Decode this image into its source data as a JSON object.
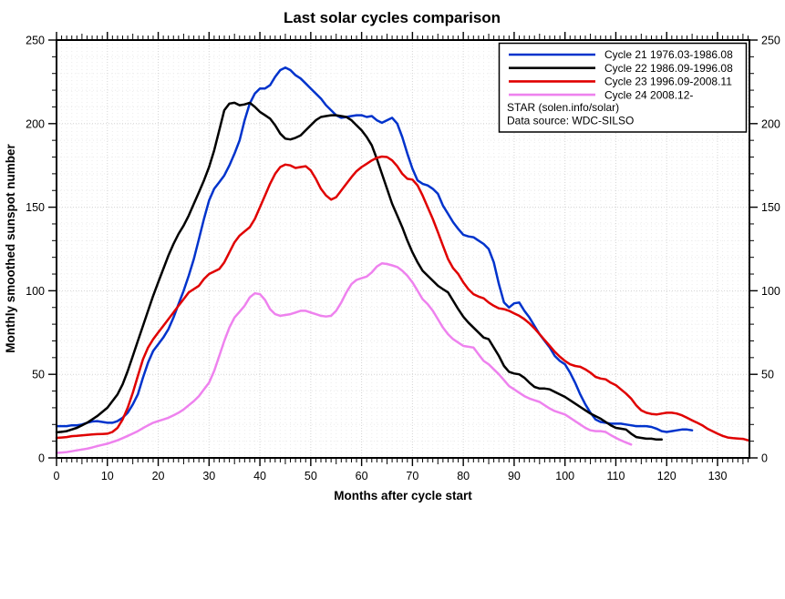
{
  "page": {
    "title": "Last solar cycles comparison"
  },
  "chart_data": {
    "type": "line",
    "title": "Last solar cycles comparison",
    "xlabel": "Months after cycle start",
    "ylabel": "Monthly smoothed sunspot number",
    "xlim": [
      0,
      136.3
    ],
    "ylim": [
      0,
      250
    ],
    "x_ticks": [
      0,
      10,
      20,
      30,
      40,
      50,
      60,
      70,
      80,
      90,
      100,
      110,
      120,
      130
    ],
    "x_minor_step": 1,
    "y_ticks": [
      0,
      50,
      100,
      150,
      200,
      250
    ],
    "y_minor_step": 10,
    "grid": "dotted major and minor gridlines, mirrored tick axes on all four sides",
    "legend_position": "top-right",
    "x_unit": "months after cycle start",
    "annotations": [
      "STAR (solen.info/solar)",
      "Data source: WDC-SILSO"
    ],
    "series": [
      {
        "name": "cycle21",
        "label": "Cycle 21 1976.03-1986.08",
        "color": "#0033cc",
        "values": [
          19,
          19,
          19,
          19.5,
          19.5,
          20,
          21,
          21.8,
          22,
          21.5,
          21,
          21,
          22,
          24,
          27,
          32,
          38,
          48,
          57,
          64,
          68,
          72,
          77,
          84,
          92,
          100,
          109,
          119,
          131,
          143,
          154,
          161,
          165,
          169,
          175,
          182,
          190,
          202,
          212,
          218,
          221,
          221,
          223,
          228,
          232,
          233.5,
          232,
          229,
          227,
          224,
          221,
          218,
          215,
          211,
          208,
          205,
          203.5,
          204,
          204.5,
          205,
          205,
          204,
          204.5,
          202,
          200.5,
          202,
          203.5,
          200,
          192,
          182,
          173,
          166,
          164,
          163,
          161,
          158,
          151,
          146,
          141,
          137,
          133.5,
          132.5,
          132,
          130,
          128,
          125,
          117,
          104,
          93,
          90,
          92.5,
          93,
          88,
          84,
          79,
          74,
          70,
          66,
          61,
          58,
          56,
          51,
          45,
          38,
          32,
          27,
          23,
          21.5,
          21,
          20.5,
          20.5,
          20.5,
          20,
          19.5,
          19,
          19,
          19,
          18.5,
          17.5,
          16,
          15.5,
          16,
          16.5,
          17,
          17,
          16.5
        ]
      },
      {
        "name": "cycle22",
        "label": "Cycle 22 1986.09-1996.08",
        "color": "#000000",
        "values": [
          15.3,
          15.6,
          16,
          17,
          18,
          19.5,
          21,
          23,
          25,
          27.5,
          30,
          34,
          38,
          44,
          52,
          61,
          70,
          79,
          88,
          97,
          105,
          113,
          121,
          128,
          134,
          139,
          145,
          152,
          159,
          166,
          174,
          184,
          196,
          208,
          212,
          212.5,
          211,
          211.5,
          212.5,
          210,
          207,
          205,
          203,
          199,
          194,
          191,
          190.5,
          191.5,
          193,
          196,
          199,
          202,
          204,
          204.5,
          205,
          205,
          204.5,
          204,
          202,
          199,
          196,
          192,
          187,
          179,
          170,
          161,
          152,
          145,
          138,
          130,
          123,
          117,
          112,
          109,
          106,
          103,
          101,
          99,
          94,
          89,
          84.5,
          81,
          78,
          75,
          72,
          71,
          66,
          61,
          55,
          51.5,
          50.5,
          50,
          48,
          45,
          42.5,
          41.5,
          41.5,
          41,
          39.5,
          38,
          36.5,
          34.5,
          32.5,
          30.5,
          28.5,
          26.5,
          25,
          23.5,
          21.5,
          19.5,
          18,
          17.5,
          17,
          14.5,
          12.5,
          12,
          11.5,
          11.5,
          11,
          11
        ]
      },
      {
        "name": "cycle23",
        "label": "Cycle 23 1996.09-2008.11",
        "color": "#e00000",
        "values": [
          12,
          12.2,
          12.5,
          13,
          13.2,
          13.5,
          13.8,
          14,
          14.2,
          14.3,
          14.5,
          15.5,
          18,
          23,
          30,
          39,
          49,
          59,
          66,
          71,
          75,
          79,
          83,
          87,
          91,
          95,
          99,
          101,
          103,
          107,
          110,
          111.5,
          113,
          117,
          123,
          129,
          133,
          135.5,
          138,
          143,
          150,
          157,
          164,
          170,
          174,
          175.5,
          175,
          173.5,
          174,
          174.5,
          172,
          167,
          161,
          157,
          154.5,
          156,
          160,
          164,
          168,
          171.5,
          174,
          176,
          178,
          179.5,
          180.3,
          180,
          178,
          174.5,
          170,
          167,
          166.5,
          163,
          157,
          150,
          143,
          135,
          127,
          119,
          113.5,
          110,
          105,
          101,
          98,
          96.5,
          95.5,
          93,
          91,
          89.5,
          89,
          88,
          86.5,
          85,
          83,
          80.5,
          77.5,
          74,
          70.5,
          67,
          63.5,
          60.5,
          58,
          56,
          55,
          54.5,
          53,
          51,
          48.5,
          47.5,
          47,
          45,
          43.5,
          41,
          38.5,
          35.5,
          31.5,
          28.5,
          27,
          26.3,
          26,
          26.5,
          27,
          27,
          26.5,
          25.5,
          24,
          22.5,
          21,
          19.5,
          17.5,
          16,
          14.5,
          13.2,
          12.2,
          11.8,
          11.6,
          11.4,
          10.5
        ]
      },
      {
        "name": "cycle24",
        "label": "Cycle 24 2008.12-",
        "color": "#ee82ee",
        "values": [
          3,
          3.2,
          3.5,
          4,
          4.5,
          5,
          5.5,
          6.2,
          7,
          7.8,
          8.5,
          9.5,
          10.5,
          11.8,
          13.2,
          14.6,
          16,
          17.8,
          19.5,
          21,
          22,
          23,
          24,
          25.5,
          27,
          29,
          31.5,
          34,
          37,
          41,
          45,
          52,
          61,
          70,
          78,
          84,
          87.5,
          91,
          96,
          98.5,
          98,
          94.5,
          89,
          86,
          85,
          85.5,
          86,
          87,
          88,
          88,
          87,
          86,
          85,
          84.6,
          85,
          88,
          93,
          99,
          104,
          106.5,
          107.5,
          108.5,
          111,
          114.5,
          116.4,
          116,
          115.2,
          114.2,
          112,
          109,
          105,
          100,
          95,
          92,
          88,
          83,
          78,
          74,
          71,
          69,
          67,
          66.5,
          66,
          62,
          58,
          56,
          53,
          50,
          46.5,
          43,
          41,
          39,
          37,
          35.5,
          34.5,
          33.5,
          31.5,
          29.5,
          28,
          27,
          26,
          24,
          22,
          20,
          18,
          16.5,
          16,
          16,
          15.5,
          13.6,
          12,
          10.5,
          9.2,
          8
        ]
      }
    ]
  }
}
